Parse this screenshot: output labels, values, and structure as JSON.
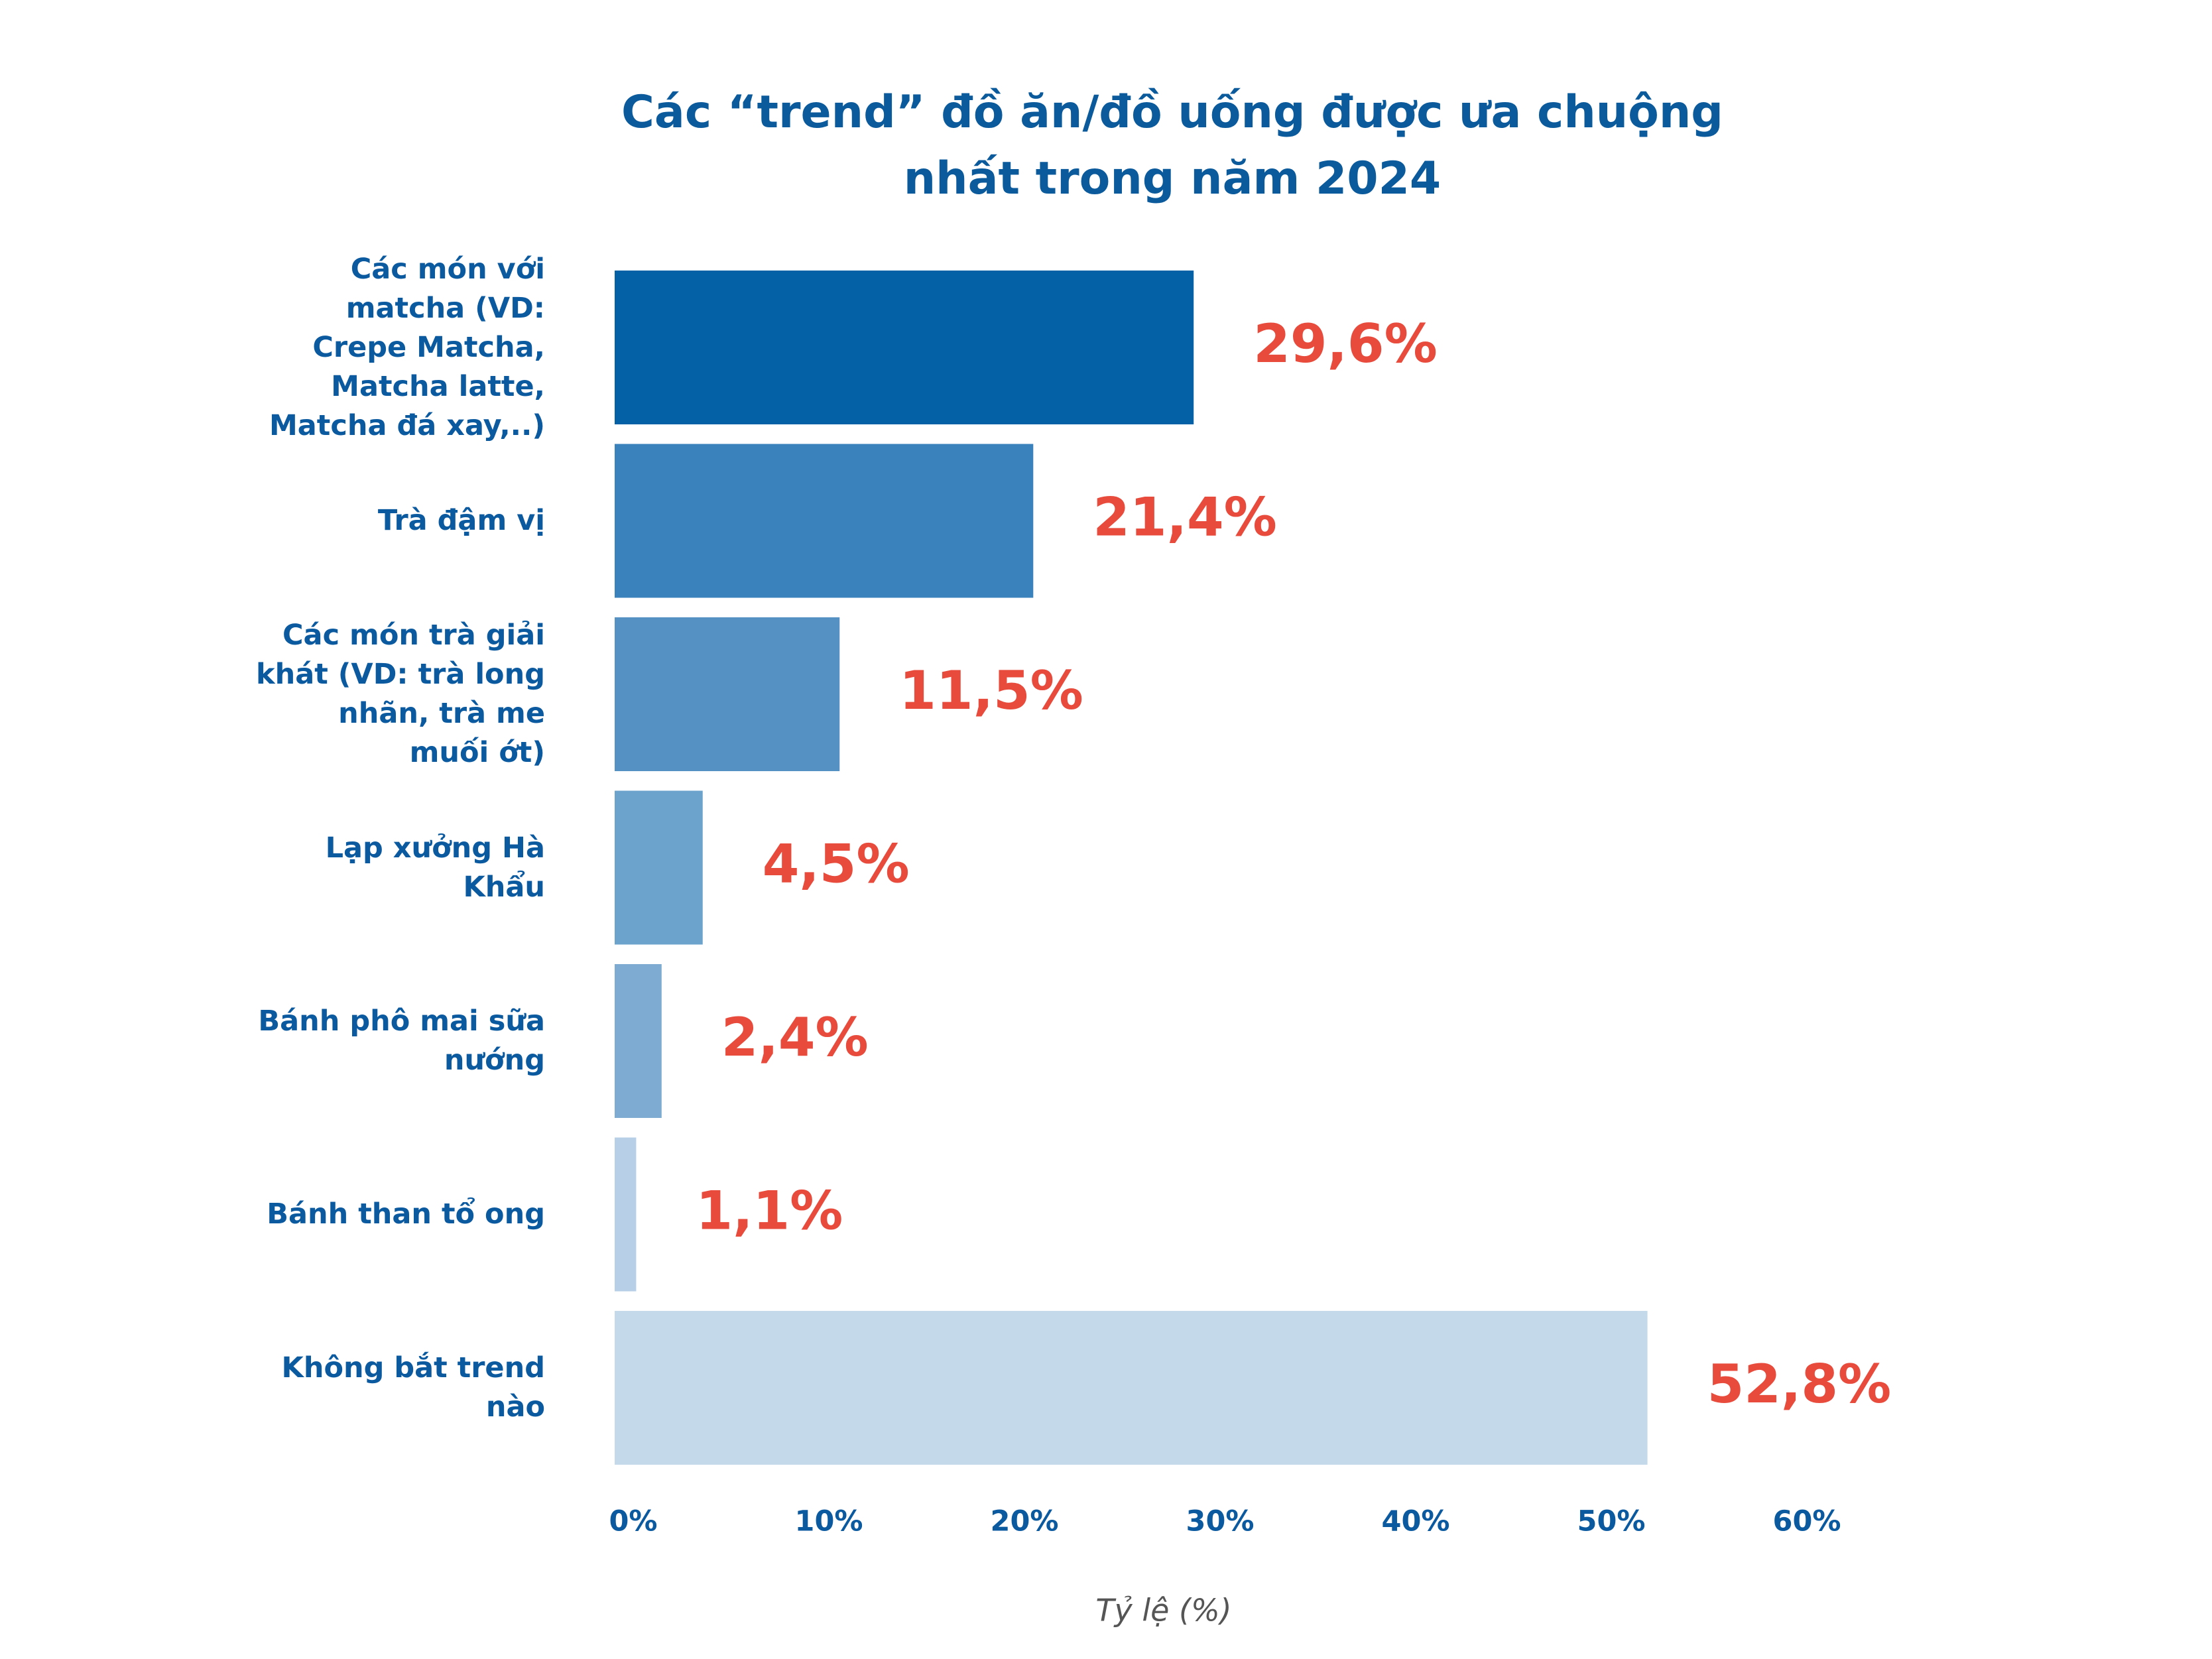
{
  "chart_data": {
    "type": "hbar",
    "title": "Các “trend” đồ ăn/đồ uống được ưa chuộng nhất trong năm 2024",
    "categories": [
      "Các món với matcha (VD: Crepe Matcha, Matcha latte, Matcha đá xay,..)",
      "Trà đậm vị",
      "Các món trà giải khát (VD: trà long nhãn, trà me muối ớt)",
      "Lạp xưởng Hà Khẩu",
      "Bánh phô mai sữa nướng",
      "Bánh than tổ ong",
      "Không bắt trend nào"
    ],
    "values": [
      29.6,
      21.4,
      11.5,
      4.5,
      2.4,
      1.1,
      52.8
    ],
    "value_labels": [
      "29,6%",
      "21,4%",
      "11,5%",
      "4,5%",
      "2,4%",
      "1,1%",
      "52,8%"
    ],
    "colors": [
      "#0561a6",
      "#3a82bb",
      "#5592c3",
      "#6ba3cc",
      "#7eabd2",
      "#b7d0e7",
      "#c4d9ea"
    ],
    "xlabel": "Tỷ lệ (%)",
    "xlim": [
      0,
      60
    ],
    "xticks": [
      {
        "value": 0,
        "label": "0%"
      },
      {
        "value": 10,
        "label": "10%"
      },
      {
        "value": 20,
        "label": "20%"
      },
      {
        "value": 30,
        "label": "30%"
      },
      {
        "value": 40,
        "label": "40%"
      },
      {
        "value": 50,
        "label": "50%"
      },
      {
        "value": 60,
        "label": "60%"
      }
    ]
  }
}
